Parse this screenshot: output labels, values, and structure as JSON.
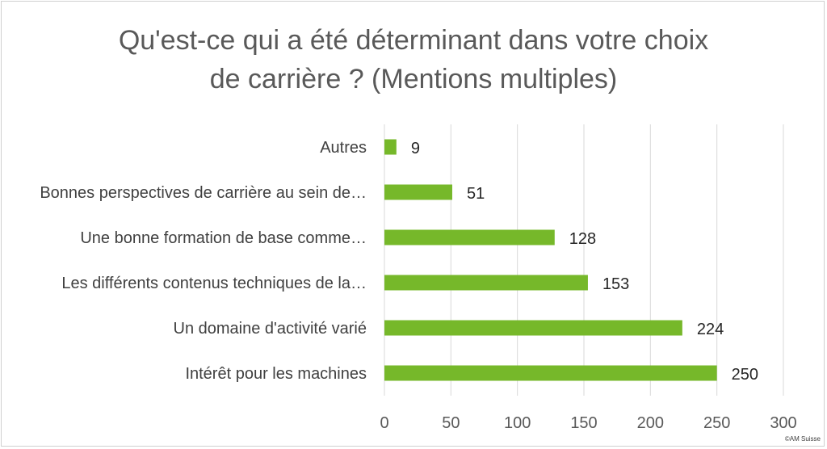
{
  "chart_data": {
    "type": "bar",
    "orientation": "horizontal",
    "title_lines": [
      "Qu'est-ce qui a été déterminant dans votre choix",
      "de carrière ? (Mentions multiples)"
    ],
    "categories": [
      "Autres",
      "Bonnes perspectives de carrière au sein de…",
      "Une bonne formation de base comme…",
      "Les différents contenus techniques de la…",
      "Un domaine d'activité varié",
      "Intérêt pour les machines"
    ],
    "values": [
      9,
      51,
      128,
      153,
      224,
      250
    ],
    "xlim": [
      0,
      300
    ],
    "xticks": [
      0,
      50,
      100,
      150,
      200,
      250,
      300
    ],
    "grid": true,
    "legend": "none",
    "bar_color": "#76b82a",
    "grid_color": "#d9d9d9"
  },
  "footer": {
    "copyright": "©AM Suisse"
  }
}
